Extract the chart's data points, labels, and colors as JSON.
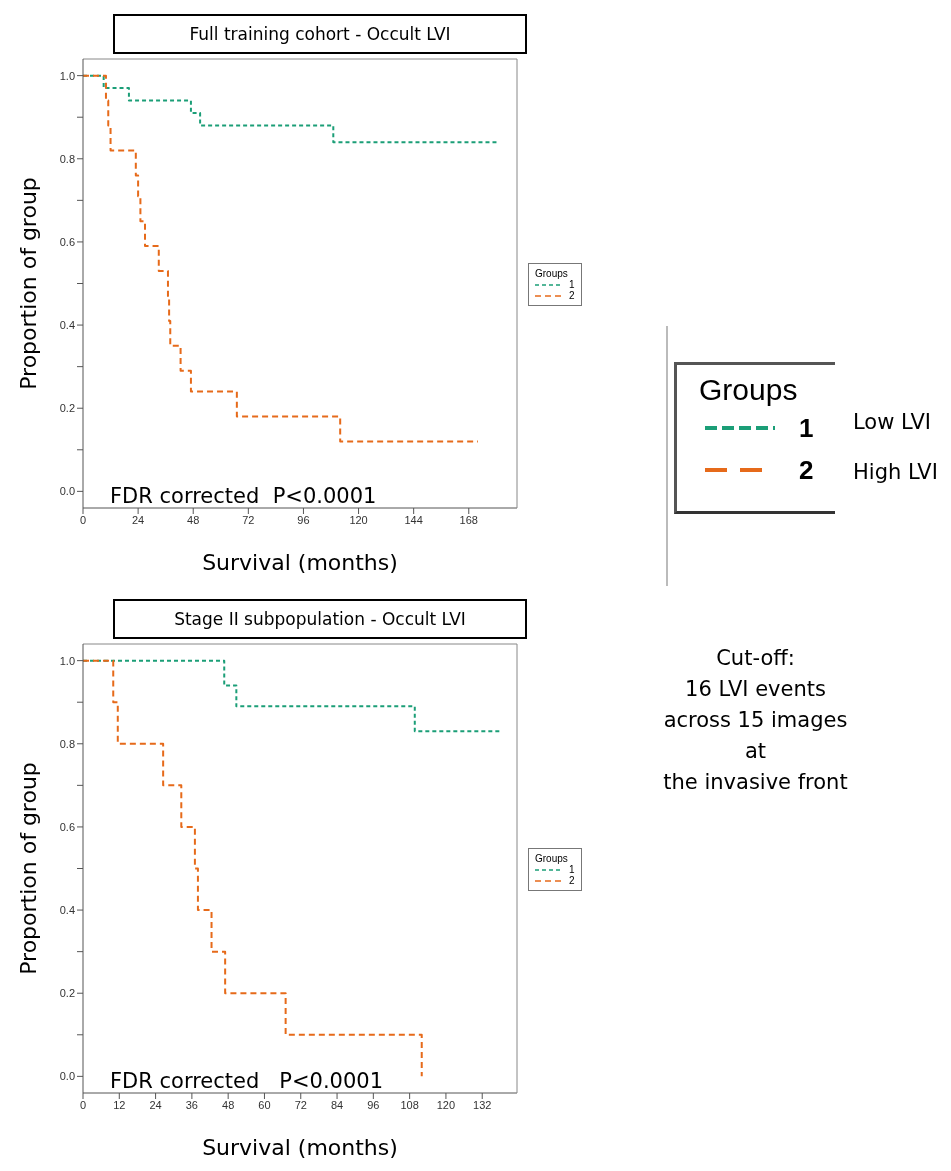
{
  "chart_data": [
    {
      "type": "step",
      "title": "Full training cohort - Occult LVI",
      "xlabel": "Survival (months)",
      "ylabel": "Proportion of group",
      "legend_title": "Groups",
      "legend": "right",
      "line_style": "dashed",
      "xlim": [
        0,
        189
      ],
      "ylim": [
        -0.04,
        1.04
      ],
      "xticks": [
        0,
        24,
        48,
        72,
        96,
        120,
        144,
        168
      ],
      "yticks": [
        {
          "value": 0,
          "label": "0.0"
        },
        {
          "value": 0.1,
          "label": null
        },
        {
          "value": 0.2,
          "label": "0.2"
        },
        {
          "value": 0.3,
          "label": null
        },
        {
          "value": 0.4,
          "label": "0.4"
        },
        {
          "value": 0.5,
          "label": null
        },
        {
          "value": 0.6,
          "label": "0.6"
        },
        {
          "value": 0.7,
          "label": null
        },
        {
          "value": 0.8,
          "label": "0.8"
        },
        {
          "value": 0.9,
          "label": null
        },
        {
          "value": 1,
          "label": "1.0"
        }
      ],
      "annotations": [
        "FDR corrected  P<0.0001",
        "Low LVI",
        "High LVI"
      ],
      "series": [
        {
          "name": "1",
          "color": "#1b9e77",
          "x": [
            0,
            9,
            20,
            47,
            51,
            109,
            181
          ],
          "values": [
            1,
            0.97,
            0.94,
            0.91,
            0.88,
            0.84,
            0.84
          ]
        },
        {
          "name": "2",
          "color": "#e66a1a",
          "x": [
            0,
            10,
            11,
            12,
            23,
            24,
            25,
            27,
            33,
            37,
            37.5,
            38,
            42.5,
            47,
            67,
            112,
            172
          ],
          "values": [
            1,
            0.94,
            0.88,
            0.82,
            0.76,
            0.71,
            0.65,
            0.59,
            0.53,
            0.47,
            0.41,
            0.35,
            0.29,
            0.24,
            0.18,
            0.12,
            0.12
          ]
        }
      ]
    },
    {
      "type": "step",
      "title": "Stage II subpopulation - Occult LVI",
      "xlabel": "Survival (months)",
      "ylabel": "Proportion of group",
      "legend_title": "Groups",
      "legend": "right",
      "line_style": "dashed",
      "xlim": [
        0,
        143.5
      ],
      "ylim": [
        -0.04,
        1.04
      ],
      "xticks": [
        0,
        12,
        24,
        36,
        48,
        60,
        72,
        84,
        96,
        108,
        120,
        132
      ],
      "yticks": [
        {
          "value": 0,
          "label": "0.0"
        },
        {
          "value": 0.1,
          "label": null
        },
        {
          "value": 0.2,
          "label": "0.2"
        },
        {
          "value": 0.3,
          "label": null
        },
        {
          "value": 0.4,
          "label": "0.4"
        },
        {
          "value": 0.5,
          "label": null
        },
        {
          "value": 0.6,
          "label": "0.6"
        },
        {
          "value": 0.7,
          "label": null
        },
        {
          "value": 0.8,
          "label": "0.8"
        },
        {
          "value": 0.9,
          "label": null
        },
        {
          "value": 1,
          "label": "1.0"
        }
      ],
      "annotations": [
        "FDR corrected   P<0.0001",
        "Cut-off:\n16 LVI events\nacross 15 images\nat\nthe invasive front"
      ],
      "series": [
        {
          "name": "1",
          "color": "#1b9e77",
          "x": [
            0,
            46.7,
            50.7,
            109.7,
            138
          ],
          "values": [
            1,
            0.94,
            0.89,
            0.83,
            0.83
          ]
        },
        {
          "name": "2",
          "color": "#e66a1a",
          "x": [
            0,
            10,
            11.5,
            26.5,
            32.5,
            37,
            38,
            42.5,
            47,
            67,
            112
          ],
          "values": [
            1,
            0.9,
            0.8,
            0.7,
            0.6,
            0.5,
            0.4,
            0.3,
            0.2,
            0.1,
            0
          ]
        }
      ]
    }
  ]
}
